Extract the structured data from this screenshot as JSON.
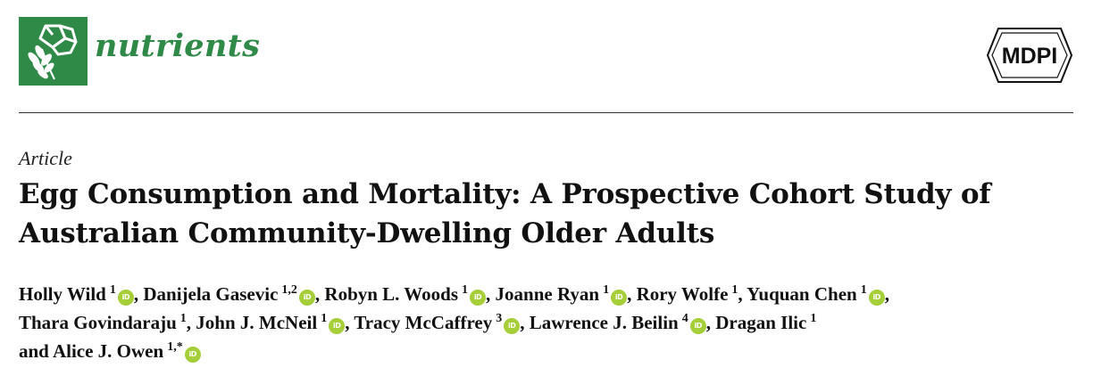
{
  "header": {
    "journal_name": "nutrients",
    "journal_logo_icon": "nutrients-leaf-logo",
    "publisher_name": "MDPI",
    "brand_color": "#2f8a48"
  },
  "article": {
    "type": "Article",
    "title": "Egg Consumption and Mortality: A Prospective Cohort Study of Australian Community-Dwelling Older Adults"
  },
  "authors": [
    {
      "name": "Holly Wild",
      "aff": "1",
      "orcid": true
    },
    {
      "name": "Danijela Gasevic",
      "aff": "1,2",
      "orcid": true
    },
    {
      "name": "Robyn L. Woods",
      "aff": "1",
      "orcid": true
    },
    {
      "name": "Joanne Ryan",
      "aff": "1",
      "orcid": true
    },
    {
      "name": "Rory Wolfe",
      "aff": "1",
      "orcid": false
    },
    {
      "name": "Yuquan Chen",
      "aff": "1",
      "orcid": true
    },
    {
      "name": "Thara Govindaraju",
      "aff": "1",
      "orcid": false
    },
    {
      "name": "John J. McNeil",
      "aff": "1",
      "orcid": true
    },
    {
      "name": "Tracy McCaffrey",
      "aff": "3",
      "orcid": true
    },
    {
      "name": "Lawrence J. Beilin",
      "aff": "4",
      "orcid": true
    },
    {
      "name": "Dragan Ilic",
      "aff": "1",
      "orcid": false
    },
    {
      "name": "Alice J. Owen",
      "aff": "1,*",
      "orcid": true
    }
  ],
  "orcid_icon_label": "iD",
  "orcid_color": "#a6ce39",
  "and_word": "and"
}
